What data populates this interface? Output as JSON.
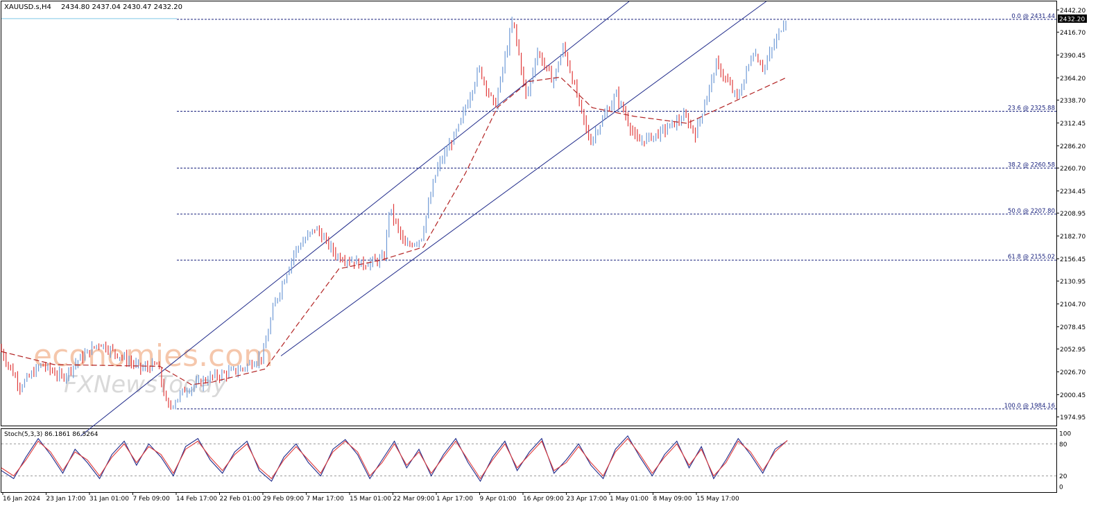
{
  "header": {
    "symbol": "XAUUSD.s,H4",
    "ohlc": "2434.80 2437.04 2430.47 2432.20"
  },
  "watermark": {
    "text": "economies.com",
    "subtext": "FXNewsToday"
  },
  "colors": {
    "bull": "#6f9ad6",
    "bear": "#e03b3b",
    "ma": "#b22222",
    "channel": "#1f2a8a",
    "fib": "#1a237e",
    "stoch_main": "#1f2a8a",
    "stoch_signal": "#e03b3b",
    "price_tag_bg": "#000000",
    "current_line": "#7fc8e8",
    "watermark": "#f2b591"
  },
  "chart_data": [
    {
      "type": "candlestick",
      "symbol": "XAUUSD.s",
      "timeframe": "H4",
      "last_price": 2432.2,
      "last_price_label": "2432.20",
      "ylim": [
        1965,
        2452
      ],
      "y_ticks": [
        2442.2,
        2416.7,
        2390.45,
        2364.2,
        2338.7,
        2312.45,
        2286.2,
        2260.7,
        2234.45,
        2208.95,
        2182.7,
        2156.45,
        2130.95,
        2104.7,
        2078.45,
        2052.95,
        2026.7,
        2000.45,
        1974.95
      ],
      "y_tick_labels": [
        "2442.20",
        "2416.70",
        "2390.45",
        "2364.20",
        "2338.70",
        "2312.45",
        "2286.20",
        "2260.70",
        "2234.45",
        "2208.95",
        "2182.70",
        "2156.45",
        "2130.95",
        "2104.70",
        "2078.45",
        "2052.95",
        "2026.70",
        "2000.45",
        "1974.95"
      ],
      "x_tick_labels": [
        "16 Jan 2024",
        "23 Jan 17:00",
        "31 Jan 01:00",
        "7 Feb 09:00",
        "14 Feb 17:00",
        "22 Feb 01:00",
        "29 Feb 09:00",
        "7 Mar 17:00",
        "15 Mar 01:00",
        "22 Mar 09:00",
        "1 Apr 17:00",
        "9 Apr 01:00",
        "16 Apr 09:00",
        "23 Apr 17:00",
        "1 May 01:00",
        "8 May 09:00",
        "15 May 17:00"
      ],
      "price_path": [
        [
          0,
          2055
        ],
        [
          0.02,
          2010
        ],
        [
          0.04,
          2035
        ],
        [
          0.06,
          2020
        ],
        [
          0.075,
          2040
        ],
        [
          0.095,
          2060
        ],
        [
          0.115,
          2045
        ],
        [
          0.135,
          2030
        ],
        [
          0.15,
          2035
        ],
        [
          0.16,
          1984
        ],
        [
          0.175,
          2005
        ],
        [
          0.2,
          2020
        ],
        [
          0.23,
          2030
        ],
        [
          0.25,
          2045
        ],
        [
          0.26,
          2100
        ],
        [
          0.28,
          2165
        ],
        [
          0.3,
          2192
        ],
        [
          0.32,
          2160
        ],
        [
          0.345,
          2150
        ],
        [
          0.365,
          2157
        ],
        [
          0.37,
          2215
        ],
        [
          0.385,
          2170
        ],
        [
          0.4,
          2180
        ],
        [
          0.415,
          2260
        ],
        [
          0.435,
          2305
        ],
        [
          0.455,
          2375
        ],
        [
          0.47,
          2330
        ],
        [
          0.487,
          2431
        ],
        [
          0.5,
          2340
        ],
        [
          0.51,
          2395
        ],
        [
          0.525,
          2360
        ],
        [
          0.535,
          2400
        ],
        [
          0.56,
          2290
        ],
        [
          0.585,
          2345
        ],
        [
          0.605,
          2290
        ],
        [
          0.625,
          2300
        ],
        [
          0.65,
          2320
        ],
        [
          0.66,
          2300
        ],
        [
          0.68,
          2380
        ],
        [
          0.7,
          2340
        ],
        [
          0.715,
          2395
        ],
        [
          0.725,
          2375
        ],
        [
          0.745,
          2432
        ]
      ],
      "moving_average": [
        [
          0,
          2050
        ],
        [
          0.05,
          2035
        ],
        [
          0.15,
          2033
        ],
        [
          0.18,
          2012
        ],
        [
          0.2,
          2015
        ],
        [
          0.25,
          2030
        ],
        [
          0.28,
          2080
        ],
        [
          0.32,
          2145
        ],
        [
          0.36,
          2155
        ],
        [
          0.4,
          2170
        ],
        [
          0.44,
          2255
        ],
        [
          0.47,
          2330
        ],
        [
          0.5,
          2360
        ],
        [
          0.53,
          2365
        ],
        [
          0.56,
          2330
        ],
        [
          0.6,
          2320
        ],
        [
          0.65,
          2312
        ],
        [
          0.7,
          2340
        ],
        [
          0.745,
          2365
        ]
      ],
      "channel": {
        "upper": [
          [
            0.075,
            1953
          ],
          [
            0.595,
            2452
          ]
        ],
        "lower": [
          [
            0.265,
            2045
          ],
          [
            0.725,
            2452
          ]
        ]
      },
      "fibonacci": [
        {
          "level": 0.0,
          "price": 2431.44,
          "label": "0.0 @ 2431.44"
        },
        {
          "level": 23.6,
          "price": 2325.88,
          "label": "23.6 @ 2325.88"
        },
        {
          "level": 38.2,
          "price": 2260.58,
          "label": "38.2 @ 2260.58"
        },
        {
          "level": 50.0,
          "price": 2207.8,
          "label": "50.0 @ 2207.80"
        },
        {
          "level": 61.8,
          "price": 2155.02,
          "label": "61.8 @ 2155.02"
        },
        {
          "level": 100.0,
          "price": 1984.16,
          "label": "100.0 @ 1984.16"
        }
      ]
    },
    {
      "type": "line",
      "indicator": "Stochastic",
      "title": "Stoch(5,3,3) 86.1861 86.5264",
      "ylim": [
        0,
        100
      ],
      "y_ticks": [
        100,
        80,
        20,
        0
      ],
      "y_tick_labels": [
        "100",
        "80",
        "20",
        "0"
      ],
      "levels": [
        80,
        20
      ],
      "series": [
        {
          "values": [
            30,
            15,
            55,
            90,
            60,
            25,
            70,
            45,
            15,
            60,
            85,
            40,
            80,
            55,
            20,
            75,
            90,
            50,
            25,
            65,
            85,
            30,
            10,
            55,
            80,
            45,
            20,
            70,
            88,
            60,
            15,
            50,
            85,
            35,
            70,
            20,
            60,
            90,
            45,
            10,
            55,
            85,
            30,
            65,
            90,
            25,
            50,
            80,
            40,
            15,
            70,
            95,
            55,
            20,
            60,
            85,
            35,
            75,
            15,
            50,
            90,
            60,
            25,
            70,
            86
          ]
        },
        {
          "values": [
            35,
            20,
            50,
            85,
            65,
            30,
            65,
            50,
            20,
            55,
            80,
            45,
            75,
            60,
            25,
            70,
            85,
            55,
            30,
            60,
            80,
            35,
            15,
            50,
            75,
            50,
            25,
            65,
            85,
            65,
            20,
            45,
            80,
            40,
            65,
            25,
            55,
            85,
            50,
            15,
            50,
            80,
            35,
            60,
            85,
            30,
            45,
            75,
            45,
            20,
            65,
            90,
            60,
            25,
            55,
            80,
            40,
            70,
            20,
            45,
            85,
            65,
            30,
            65,
            86.5
          ]
        }
      ]
    }
  ]
}
